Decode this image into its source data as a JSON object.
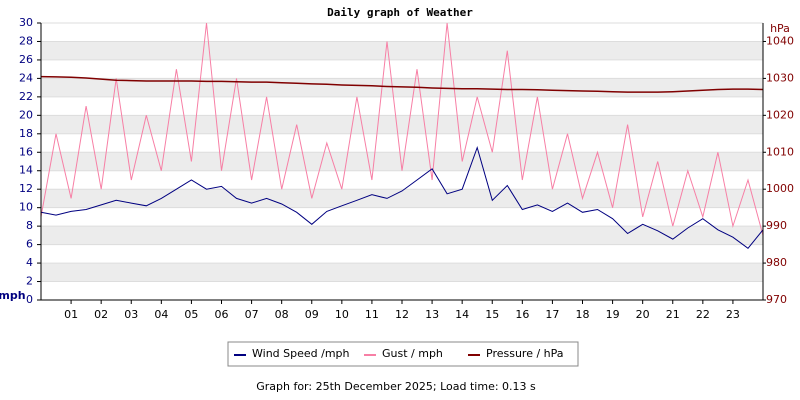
{
  "chart_data": {
    "type": "line",
    "title": "Daily graph of Weather",
    "y_label": "mph",
    "y2_label": "hPa",
    "footer": "Graph for: 25th December 2025; Load time: 0.13 s",
    "x": [
      0,
      0.5,
      1,
      1.5,
      2,
      2.5,
      3,
      3.5,
      4,
      4.5,
      5,
      5.5,
      6,
      6.5,
      7,
      7.5,
      8,
      8.5,
      9,
      9.5,
      10,
      10.5,
      11,
      11.5,
      12,
      12.5,
      13,
      13.5,
      14,
      14.5,
      15,
      15.5,
      16,
      16.5,
      17,
      17.5,
      18,
      18.5,
      19,
      19.5,
      20,
      20.5,
      21,
      21.5,
      22,
      22.5,
      23,
      23.5,
      24
    ],
    "xlim": [
      0,
      24
    ],
    "xticks": [
      {
        "value": 1,
        "label": "01"
      },
      {
        "value": 2,
        "label": "02"
      },
      {
        "value": 3,
        "label": "03"
      },
      {
        "value": 4,
        "label": "04"
      },
      {
        "value": 5,
        "label": "05"
      },
      {
        "value": 6,
        "label": "06"
      },
      {
        "value": 7,
        "label": "07"
      },
      {
        "value": 8,
        "label": "08"
      },
      {
        "value": 9,
        "label": "09"
      },
      {
        "value": 10,
        "label": "10"
      },
      {
        "value": 11,
        "label": "11"
      },
      {
        "value": 12,
        "label": "12"
      },
      {
        "value": 13,
        "label": "13"
      },
      {
        "value": 14,
        "label": "14"
      },
      {
        "value": 15,
        "label": "15"
      },
      {
        "value": 16,
        "label": "16"
      },
      {
        "value": 17,
        "label": "17"
      },
      {
        "value": 18,
        "label": "18"
      },
      {
        "value": 19,
        "label": "19"
      },
      {
        "value": 20,
        "label": "20"
      },
      {
        "value": 21,
        "label": "21"
      },
      {
        "value": 22,
        "label": "22"
      },
      {
        "value": 23,
        "label": "23"
      }
    ],
    "ylim": [
      0,
      30
    ],
    "yticks": [
      0,
      2,
      4,
      6,
      8,
      10,
      12,
      14,
      16,
      18,
      20,
      22,
      24,
      26,
      28,
      30
    ],
    "y2lim": [
      970,
      1045
    ],
    "y2ticks": [
      970,
      980,
      990,
      1000,
      1010,
      1020,
      1030,
      1040
    ],
    "series": [
      {
        "name": "Wind Speed /mph",
        "color": "#000080",
        "values": [
          9.5,
          9.2,
          9.6,
          9.8,
          10.3,
          10.8,
          10.5,
          10.2,
          11,
          12,
          13,
          12,
          12.3,
          11,
          10.5,
          11,
          10.4,
          9.5,
          8.2,
          9.6,
          10.2,
          10.8,
          11.4,
          11,
          11.8,
          13,
          14.2,
          11.5,
          12,
          16.5,
          10.8,
          12.4,
          9.8,
          10.3,
          9.6,
          10.5,
          9.5,
          9.8,
          8.8,
          7.2,
          8.2,
          7.5,
          6.6,
          7.8,
          8.8,
          7.6,
          6.8,
          5.6,
          7.6
        ]
      },
      {
        "name": "Gust / mph",
        "color": "#f77fa5",
        "values": [
          9,
          18,
          11,
          21,
          12,
          24,
          13,
          20,
          14,
          25,
          15,
          30,
          14,
          24,
          13,
          22,
          12,
          19,
          11,
          17,
          12,
          22,
          13,
          28,
          14,
          25,
          13,
          30,
          15,
          22,
          16,
          27,
          13,
          22,
          12,
          18,
          11,
          16,
          10,
          19,
          9,
          15,
          8,
          14,
          9,
          16,
          8,
          13,
          7
        ]
      },
      {
        "name": "Pressure / hPa",
        "color": "#800000",
        "axis": "y2",
        "values": [
          1030.5,
          1030.4,
          1030.3,
          1030.1,
          1029.8,
          1029.5,
          1029.4,
          1029.3,
          1029.3,
          1029.3,
          1029.3,
          1029.2,
          1029.2,
          1029.1,
          1029.0,
          1029.0,
          1028.8,
          1028.7,
          1028.5,
          1028.4,
          1028.2,
          1028.1,
          1028.0,
          1027.8,
          1027.7,
          1027.6,
          1027.4,
          1027.3,
          1027.2,
          1027.2,
          1027.1,
          1027.0,
          1027.0,
          1026.9,
          1026.8,
          1026.7,
          1026.6,
          1026.5,
          1026.4,
          1026.3,
          1026.3,
          1026.3,
          1026.4,
          1026.6,
          1026.8,
          1027.0,
          1027.1,
          1027.1,
          1027.0
        ]
      }
    ],
    "grid": true
  }
}
